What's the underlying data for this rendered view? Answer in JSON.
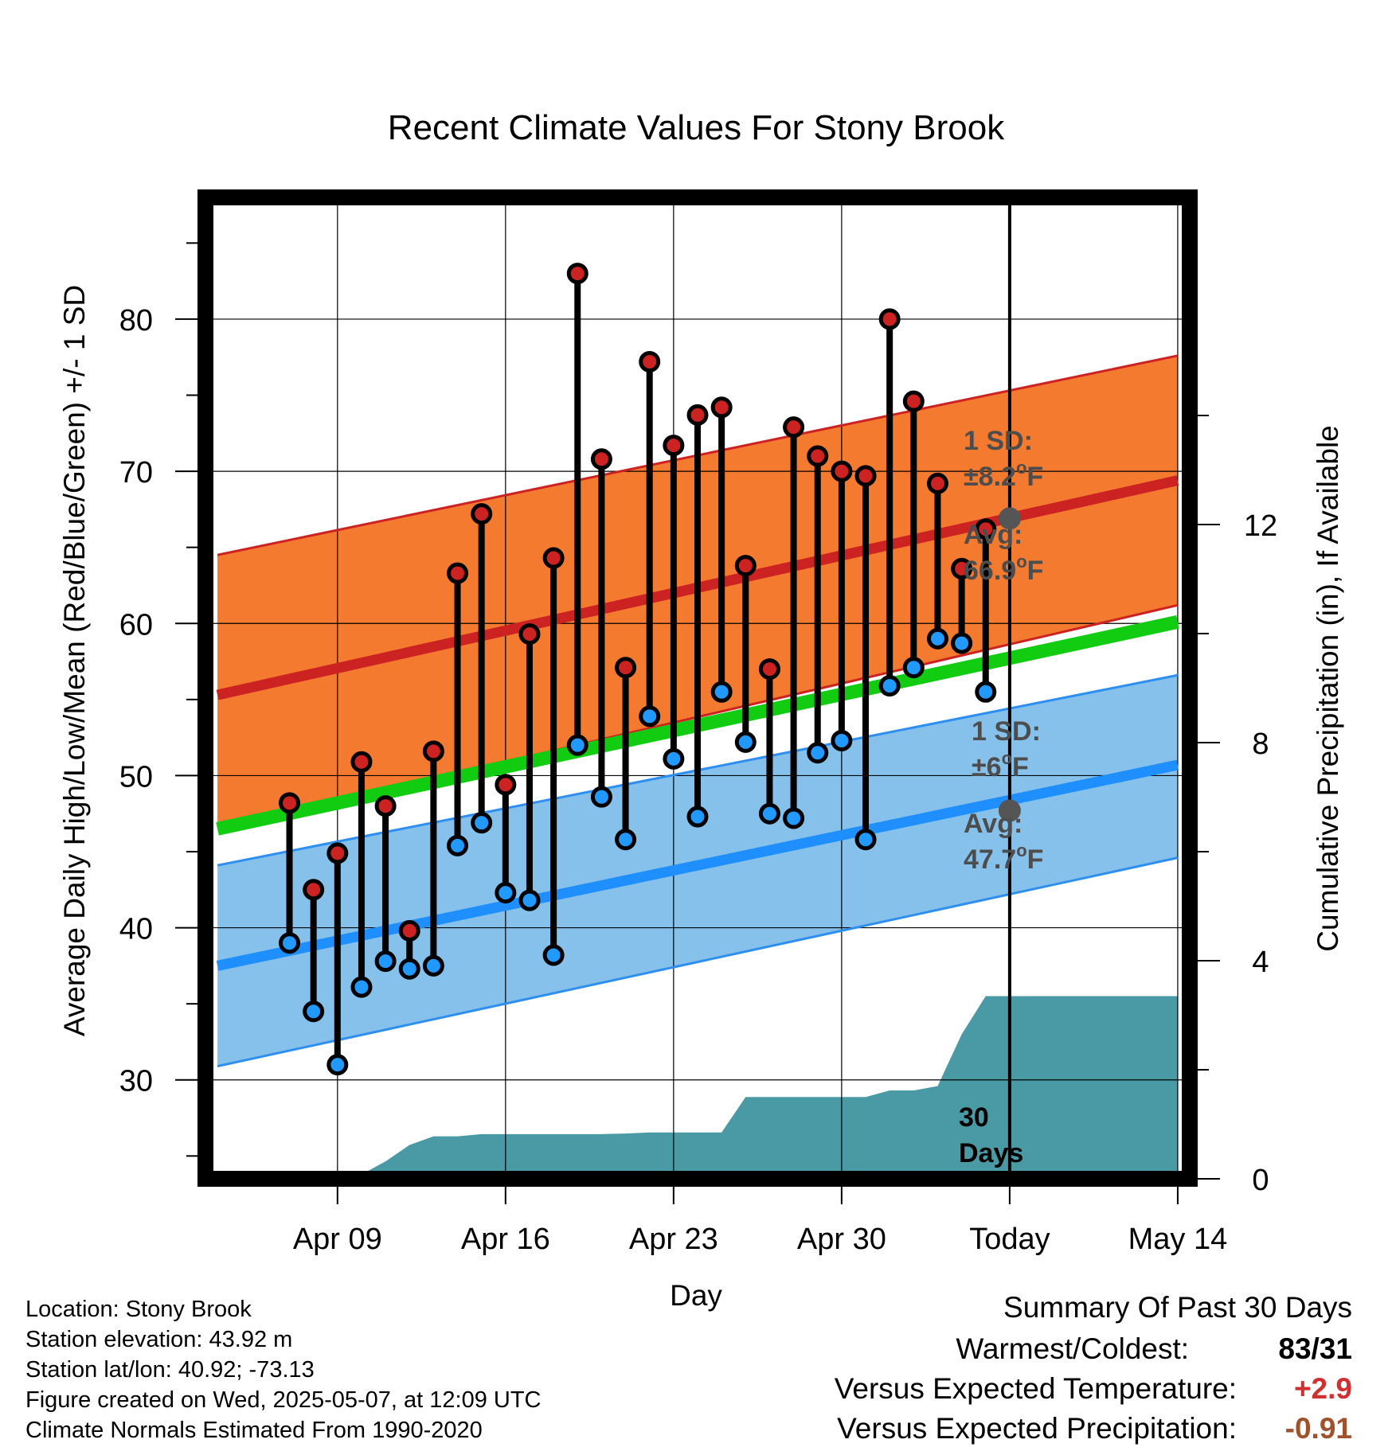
{
  "chart_data": {
    "type": "line",
    "title": "Recent Climate Values For Stony Brook",
    "xlabel": "Day",
    "ylabel": "Average Daily High/Low/Mean (Red/Blue/Green) +/- 1 SD",
    "y2label": "Cumulative Precipitation (in), If Available",
    "x_tick_labels": [
      "Apr 09",
      "Apr 16",
      "Apr 23",
      "Apr 30",
      "Today",
      "May 14"
    ],
    "x_tick_days": [
      3,
      10,
      17,
      24,
      31,
      38
    ],
    "xlim": [
      -2.5,
      38.5
    ],
    "ylim": [
      23.5,
      88
    ],
    "y_ticks": [
      30,
      40,
      50,
      60,
      70,
      80
    ],
    "y2lim": [
      0,
      18
    ],
    "y2_ticks": [
      0,
      4,
      8,
      12
    ],
    "grid": true,
    "today_day": 31,
    "normals": {
      "days": [
        -2,
        38
      ],
      "high_mean": [
        55.3,
        69.4
      ],
      "high_upper": [
        64.5,
        77.6
      ],
      "high_lower": [
        46.5,
        61.2
      ],
      "low_mean": [
        37.5,
        50.7
      ],
      "low_upper": [
        44.1,
        56.6
      ],
      "low_lower": [
        30.9,
        44.6
      ],
      "daily_mean": [
        46.5,
        60.1
      ]
    },
    "annotations": {
      "high_sd_label": "1 SD:",
      "high_sd_value": "±8.2",
      "high_avg_label": "Avg:",
      "high_avg_value": "66.9",
      "high_avg": 66.9,
      "low_sd_label": "1 SD:",
      "low_sd_value": "±6",
      "low_avg_label": "Avg:",
      "low_avg_value": "47.7",
      "low_avg": 47.7,
      "degree_sup": "o",
      "unit": "F",
      "window_number": "30",
      "window_unit": "Days"
    },
    "series": [
      {
        "name": "Daily High",
        "color": "#cc2222",
        "days": [
          1,
          2,
          3,
          4,
          5,
          6,
          7,
          8,
          9,
          10,
          11,
          12,
          13,
          14,
          15,
          16,
          17,
          18,
          19,
          20,
          21,
          22,
          23,
          24,
          25,
          26,
          27,
          28,
          29,
          30
        ],
        "values": [
          48.2,
          42.5,
          44.9,
          50.9,
          48.0,
          39.8,
          51.6,
          63.3,
          67.2,
          49.4,
          59.3,
          64.3,
          83.0,
          70.8,
          57.1,
          77.2,
          71.7,
          73.7,
          74.2,
          63.8,
          57.0,
          72.9,
          71.0,
          70.0,
          69.7,
          80.0,
          74.6,
          69.2,
          63.6,
          66.2
        ]
      },
      {
        "name": "Daily Low",
        "color": "#2299ff",
        "days": [
          1,
          2,
          3,
          4,
          5,
          6,
          7,
          8,
          9,
          10,
          11,
          12,
          13,
          14,
          15,
          16,
          17,
          18,
          19,
          20,
          21,
          22,
          23,
          24,
          25,
          26,
          27,
          28,
          29,
          30
        ],
        "values": [
          39.0,
          34.5,
          31.0,
          36.1,
          37.8,
          37.3,
          37.5,
          45.4,
          46.9,
          42.3,
          41.8,
          38.2,
          52.0,
          48.6,
          45.8,
          53.9,
          51.1,
          47.3,
          55.5,
          52.2,
          47.5,
          47.2,
          51.5,
          52.3,
          45.8,
          55.9,
          57.1,
          59.0,
          58.7,
          55.5
        ]
      },
      {
        "name": "Cumulative Precipitation",
        "color": "#4a9aa5",
        "axis": "y2",
        "days": [
          -2,
          1,
          2,
          3,
          4,
          5,
          6,
          7,
          8,
          9,
          10,
          11,
          12,
          13,
          14,
          15,
          16,
          17,
          18,
          19,
          20,
          21,
          22,
          23,
          24,
          25,
          26,
          27,
          28,
          29,
          30,
          38
        ],
        "values": [
          0.0,
          0.05,
          0.05,
          0.05,
          0.08,
          0.32,
          0.62,
          0.78,
          0.78,
          0.82,
          0.82,
          0.82,
          0.82,
          0.82,
          0.82,
          0.83,
          0.85,
          0.85,
          0.85,
          0.85,
          1.5,
          1.5,
          1.5,
          1.5,
          1.5,
          1.5,
          1.62,
          1.62,
          1.7,
          2.65,
          3.35,
          3.35
        ]
      }
    ]
  },
  "footer": {
    "location": "Location: Stony Brook",
    "elevation": "Station elevation: 43.92 m",
    "latlon": "Station lat/lon: 40.92; -73.13",
    "created": "Figure created on Wed, 2025-05-07, at 12:09 UTC",
    "normals_period": "Climate Normals Estimated From 1990-2020"
  },
  "summary": {
    "heading": "Summary Of Past 30 Days",
    "warm_cold_label": "Warmest/Coldest:",
    "warm_cold_value": "83/31",
    "temp_label": "Versus Expected Temperature:",
    "temp_value": "+2.9",
    "temp_color": "#d03030",
    "precip_label": "Versus Expected Precipitation:",
    "precip_value": "-0.91",
    "precip_color": "#a0522d"
  },
  "colors": {
    "high_band": "#f47a30",
    "high_edge": "#cc2222",
    "high_mean": "#cc2222",
    "low_band": "#85c1ea",
    "low_edge": "#2e8ff0",
    "low_mean": "#1f8fff",
    "daily_mean": "#11cc11",
    "precip": "#4a9aa5",
    "marker_high": "#cc2222",
    "marker_low": "#2299ff",
    "avg_marker": "#555555"
  }
}
